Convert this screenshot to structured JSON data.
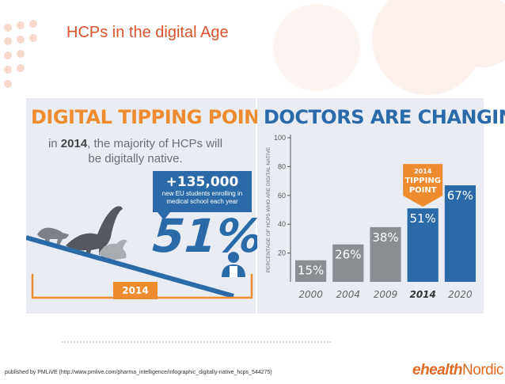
{
  "slide": {
    "title": "HCPs in the digital Age",
    "footer": "published by PMLiVE (http://www.pmlive.com/pharma_intelligence/infographic_digitally-native_hcps_544275)",
    "logo_bold": "ehealth",
    "logo_light": "Nordic",
    "accent": "#d9532b"
  },
  "left": {
    "heading": "DIGITAL TIPPING POINT",
    "intro_pre": "in",
    "intro_year": "2014",
    "intro_post": ", the majority of HCPs will be digitally native.",
    "callout_value": "+135,000",
    "callout_text": "new EU students enrolling in medical school each year",
    "big_percent": "51%",
    "year_marker": "2014",
    "colors": {
      "orange": "#ee8b2e",
      "blue": "#2b6aa8",
      "grey": "#8a8e93"
    },
    "icons": [
      "dinosaur-icon",
      "doctor-icon"
    ]
  },
  "right": {
    "heading": "DOCTORS ARE CHANGING",
    "badge_year": "2014",
    "badge_line1": "TIPPING",
    "badge_line2": "POINT"
  },
  "chart_data": {
    "type": "bar",
    "title": "DOCTORS ARE CHANGING",
    "ylabel": "PERCENTAGE OF HCPS WHO ARE DIGITAL NATIVE",
    "xlabel": "",
    "ylim": [
      0,
      100
    ],
    "yticks": [
      20,
      40,
      60,
      80,
      100
    ],
    "categories": [
      "2000",
      "2004",
      "2009",
      "2014",
      "2020"
    ],
    "values": [
      15,
      26,
      38,
      51,
      67
    ],
    "labels": [
      "15%",
      "26%",
      "38%",
      "51%",
      "67%"
    ],
    "colors": [
      "#8a8e93",
      "#8a8e93",
      "#8a8e93",
      "#2b6aa8",
      "#2b6aa8"
    ],
    "highlight": "2014",
    "grid": false,
    "legend": "none"
  }
}
